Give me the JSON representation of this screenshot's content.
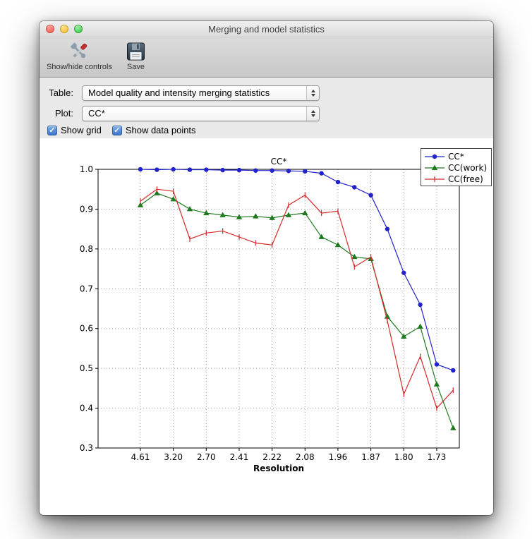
{
  "window": {
    "title": "Merging and model statistics"
  },
  "toolbar": {
    "buttons": [
      {
        "label": "Show/hide controls",
        "icon": "tools-icon"
      },
      {
        "label": "Save",
        "icon": "save-icon"
      }
    ]
  },
  "controls": {
    "table": {
      "label": "Table:",
      "value": "Model quality and intensity merging statistics"
    },
    "plot": {
      "label": "Plot:",
      "value": "CC*"
    },
    "checkbox_glyph": "✓",
    "checkboxes": [
      {
        "label": "Show grid",
        "checked": true
      },
      {
        "label": "Show data points",
        "checked": true
      }
    ]
  },
  "chart_data": {
    "type": "line",
    "title": "CC*",
    "xlabel": "Resolution",
    "ylabel": "",
    "ylim": [
      0.3,
      1.0
    ],
    "yticks": [
      1.0,
      0.9,
      0.8,
      0.7,
      0.6,
      0.5,
      0.4,
      0.3
    ],
    "xtick_labels": [
      "4.61",
      "3.20",
      "2.70",
      "2.41",
      "2.22",
      "2.08",
      "1.96",
      "1.87",
      "1.80",
      "1.73"
    ],
    "xtick_indices": [
      0,
      2,
      4,
      6,
      8,
      10,
      12,
      14,
      16,
      18
    ],
    "grid": true,
    "show_data_points": true,
    "legend_position": "upper right",
    "series": [
      {
        "name": "CC*",
        "color": "#2222cc",
        "marker": "circle",
        "values": [
          1.0,
          0.999,
          1.0,
          0.999,
          0.999,
          0.998,
          0.998,
          0.997,
          0.997,
          0.996,
          0.995,
          0.99,
          0.968,
          0.955,
          0.935,
          0.85,
          0.74,
          0.66,
          0.51,
          0.495
        ]
      },
      {
        "name": "CC(work)",
        "color": "#1f7a1f",
        "marker": "triangle",
        "values": [
          0.91,
          0.94,
          0.925,
          0.9,
          0.89,
          0.885,
          0.88,
          0.882,
          0.878,
          0.885,
          0.89,
          0.83,
          0.81,
          0.78,
          0.775,
          0.63,
          0.58,
          0.605,
          0.46,
          0.35
        ]
      },
      {
        "name": "CC(free)",
        "color": "#d42a2a",
        "marker": "vline",
        "values": [
          0.92,
          0.95,
          0.945,
          0.825,
          0.84,
          0.845,
          0.83,
          0.815,
          0.81,
          0.91,
          0.935,
          0.89,
          0.895,
          0.755,
          0.78,
          0.62,
          0.435,
          0.53,
          0.4,
          0.445
        ]
      }
    ]
  }
}
